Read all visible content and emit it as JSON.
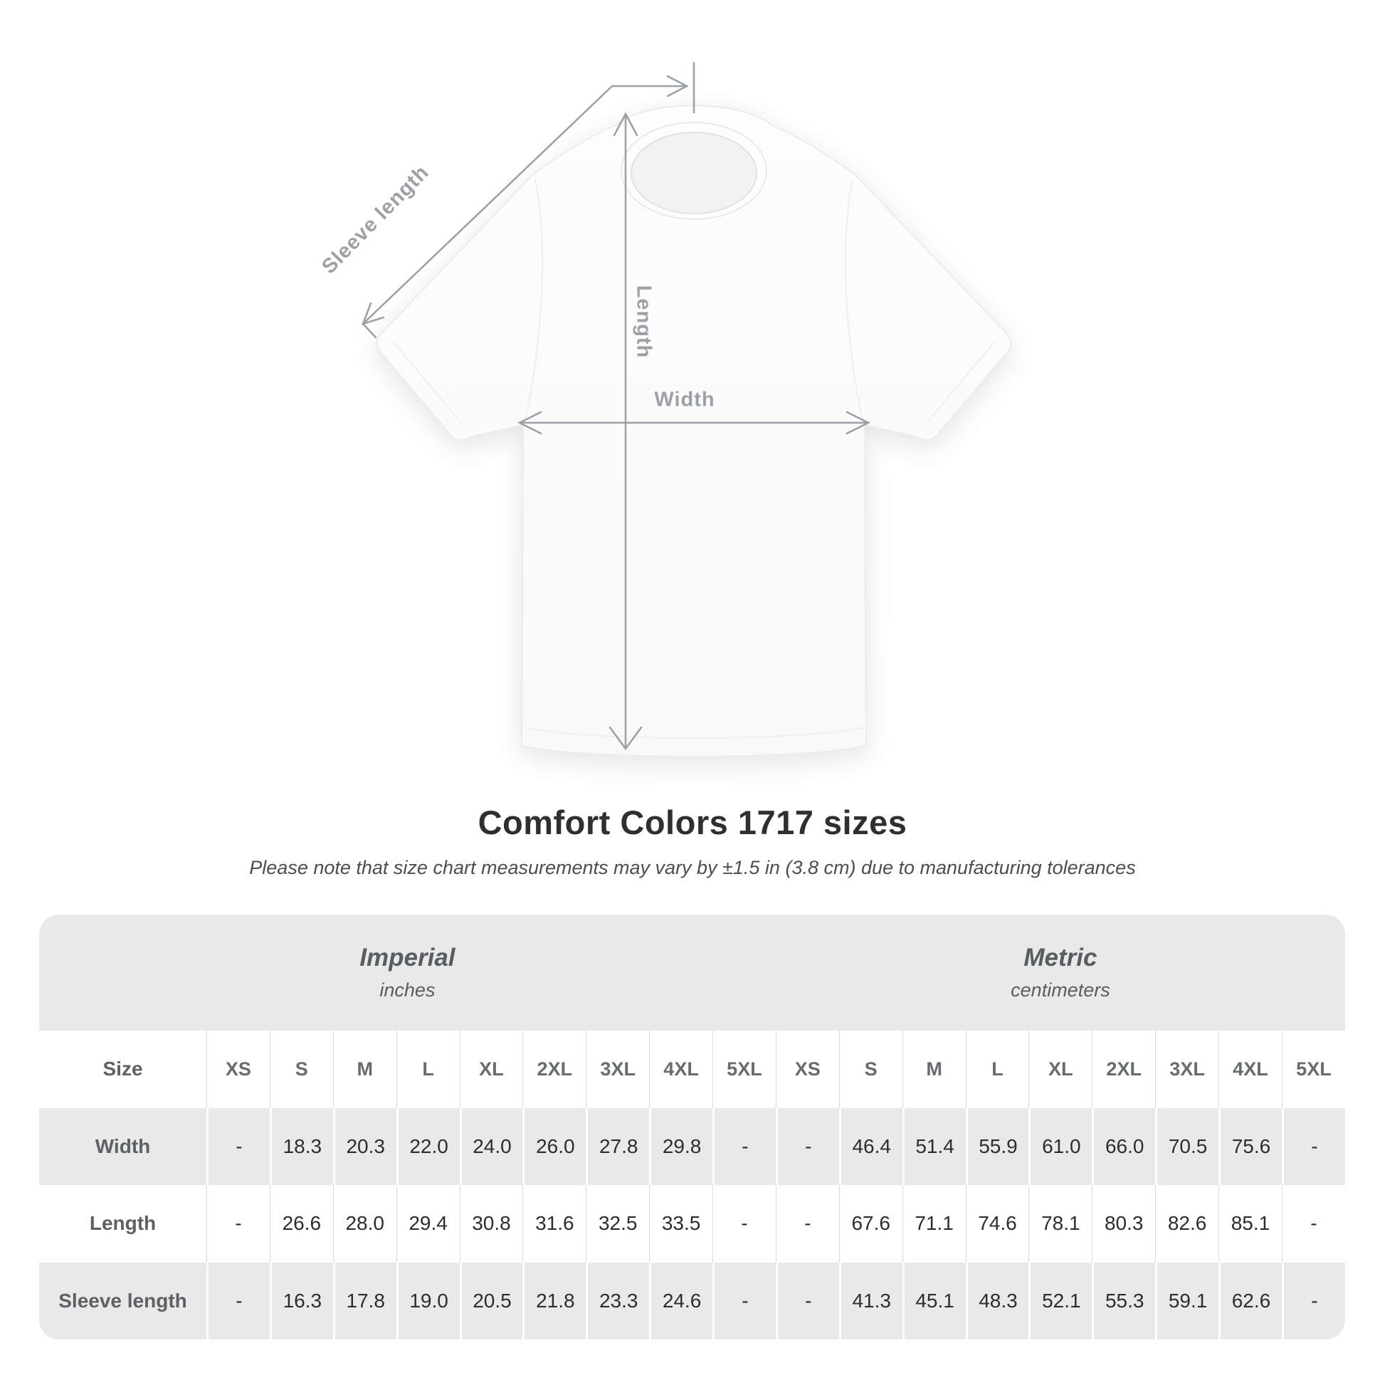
{
  "page": {
    "title": "Comfort Colors 1717 sizes",
    "subtitle": "Please note that size chart measurements may vary by ±1.5 in (3.8 cm) due to manufacturing tolerances"
  },
  "diagram": {
    "labels": {
      "sleeve": "Sleeve length",
      "length": "Length",
      "width": "Width"
    },
    "arrow_color": "#99a0a6",
    "label_color": "#9ba1a6"
  },
  "chart_data": {
    "type": "table",
    "title": "Comfort Colors 1717 sizes",
    "size_label": "Size",
    "sizes": [
      "XS",
      "S",
      "M",
      "L",
      "XL",
      "2XL",
      "3XL",
      "4XL",
      "5XL"
    ],
    "groups": [
      {
        "name": "Imperial",
        "unit": "inches"
      },
      {
        "name": "Metric",
        "unit": "centimeters"
      }
    ],
    "rows": [
      {
        "label": "Width",
        "imperial": [
          "-",
          "18.3",
          "20.3",
          "22.0",
          "24.0",
          "26.0",
          "27.8",
          "29.8",
          "-"
        ],
        "metric": [
          "-",
          "46.4",
          "51.4",
          "55.9",
          "61.0",
          "66.0",
          "70.5",
          "75.6",
          "-"
        ]
      },
      {
        "label": "Length",
        "imperial": [
          "-",
          "26.6",
          "28.0",
          "29.4",
          "30.8",
          "31.6",
          "32.5",
          "33.5",
          "-"
        ],
        "metric": [
          "-",
          "67.6",
          "71.1",
          "74.6",
          "78.1",
          "80.3",
          "82.6",
          "85.1",
          "-"
        ]
      },
      {
        "label": "Sleeve length",
        "imperial": [
          "-",
          "16.3",
          "17.8",
          "19.0",
          "20.5",
          "21.8",
          "23.3",
          "24.6",
          "-"
        ],
        "metric": [
          "-",
          "41.3",
          "45.1",
          "48.3",
          "52.1",
          "55.3",
          "59.1",
          "62.6",
          "-"
        ]
      }
    ]
  }
}
